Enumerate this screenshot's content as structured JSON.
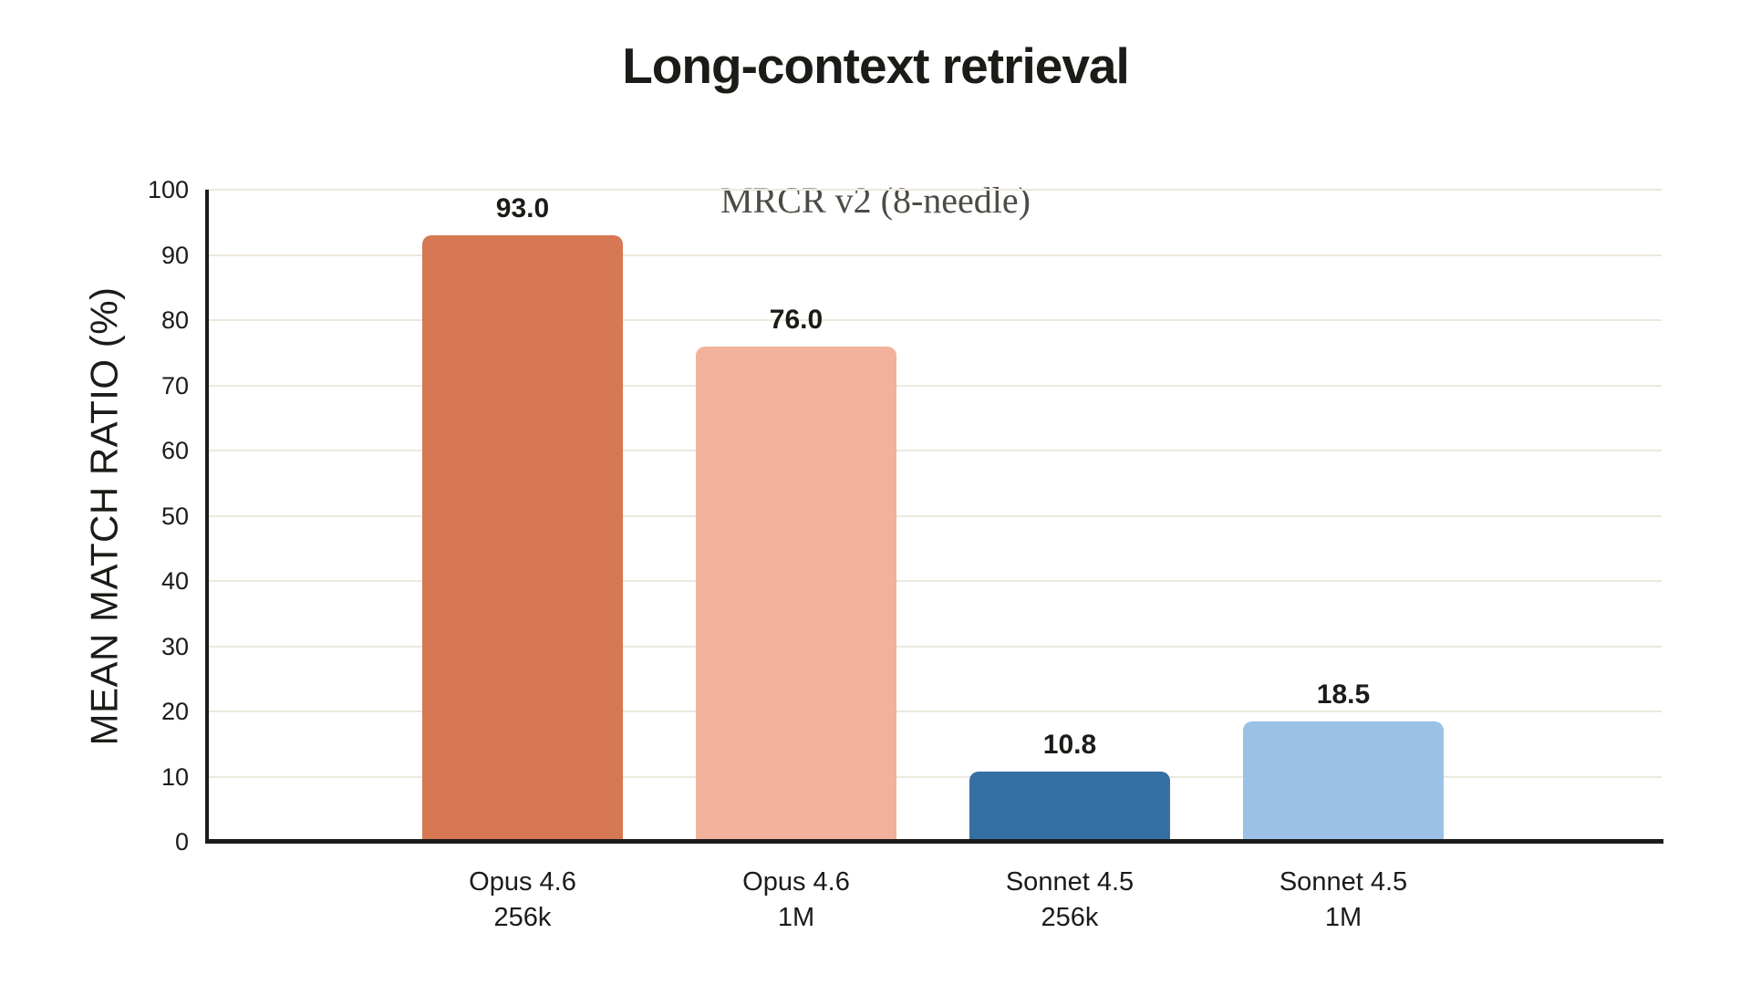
{
  "chart_data": {
    "type": "bar",
    "title": "Long-context retrieval",
    "subtitle": "MRCR v2 (8-needle)",
    "xlabel": "",
    "ylabel": "MEAN MATCH RATIO (%)",
    "ylim": [
      0,
      100
    ],
    "ytick_step": 10,
    "grid": "horizontal",
    "legend": "none",
    "categories": [
      {
        "label": "Opus 4.6",
        "sublabel": "256k"
      },
      {
        "label": "Opus 4.6",
        "sublabel": "1M"
      },
      {
        "label": "Sonnet 4.5",
        "sublabel": "256k"
      },
      {
        "label": "Sonnet 4.5",
        "sublabel": "1M"
      }
    ],
    "values": [
      93.0,
      76.0,
      10.8,
      18.5
    ],
    "value_labels": [
      "93.0",
      "76.0",
      "10.8",
      "18.5"
    ],
    "bar_colors": [
      "#d57853",
      "#f2b19b",
      "#356fa4",
      "#9bc1e6"
    ]
  },
  "colors": {
    "background": "#ffffff",
    "grid": "#ece8dc",
    "axis": "#1c1b18",
    "title_text": "#1c1b18",
    "subtitle_text": "#4e4b45"
  }
}
